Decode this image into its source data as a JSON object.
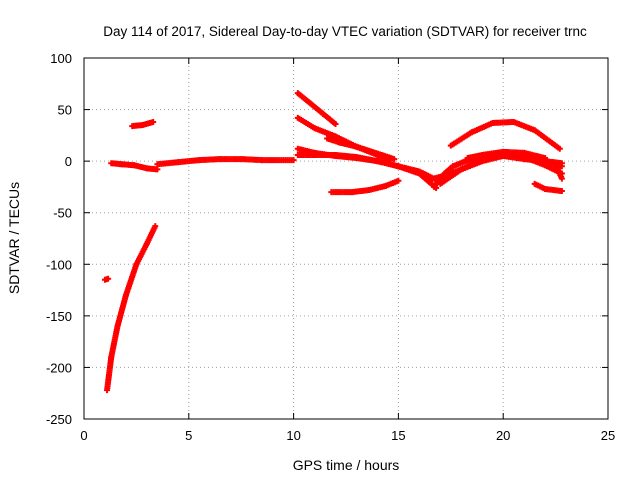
{
  "chart_data": {
    "type": "scatter",
    "title": "Day 114 of 2017, Sidereal Day-to-day VTEC variation (SDTVAR) for receiver trnc",
    "xlabel": "GPS time / hours",
    "ylabel": "SDTVAR / TECUs",
    "xlim": [
      0,
      25
    ],
    "ylim": [
      -250,
      100
    ],
    "xticks": [
      0,
      5,
      10,
      15,
      20,
      25
    ],
    "yticks": [
      -250,
      -200,
      -150,
      -100,
      -50,
      0,
      50,
      100
    ],
    "grid": true,
    "marker": "+",
    "color": "#ff0000",
    "segments": [
      {
        "x": [
          1.0,
          1.15
        ],
        "y": [
          -115,
          -114
        ]
      },
      {
        "x": [
          1.1,
          1.3,
          1.6,
          2.0,
          2.5,
          3.0,
          3.4
        ],
        "y": [
          -222,
          -190,
          -160,
          -130,
          -100,
          -80,
          -63
        ]
      },
      {
        "x": [
          1.3,
          1.8,
          2.4,
          3.0,
          3.5
        ],
        "y": [
          -2,
          -3,
          -4,
          -7,
          -8
        ]
      },
      {
        "x": [
          2.3,
          2.8,
          3.3
        ],
        "y": [
          34,
          35,
          38
        ]
      },
      {
        "x": [
          3.5,
          4.5,
          5.5,
          6.5,
          7.5,
          8.5,
          10.0
        ],
        "y": [
          -3,
          -1,
          1,
          2,
          2,
          1,
          1
        ]
      },
      {
        "x": [
          10.2,
          10.8,
          11.4,
          12.0
        ],
        "y": [
          66,
          56,
          46,
          36
        ]
      },
      {
        "x": [
          10.2,
          11.0,
          12.0,
          13.0,
          14.0,
          14.6
        ],
        "y": [
          42,
          32,
          24,
          14,
          6,
          2
        ]
      },
      {
        "x": [
          10.2,
          11.0,
          12.0,
          13.0,
          14.0,
          15.0,
          16.0,
          17.0
        ],
        "y": [
          12,
          8,
          5,
          3,
          0,
          -5,
          -10,
          -20
        ]
      },
      {
        "x": [
          10.2,
          11.0,
          12.0,
          13.0,
          14.0,
          15.0,
          16.0,
          16.8
        ],
        "y": [
          6,
          6,
          6,
          4,
          0,
          -5,
          -12,
          -26
        ]
      },
      {
        "x": [
          11.6,
          12.2,
          13.0,
          13.6,
          14.2,
          14.8
        ],
        "y": [
          22,
          18,
          14,
          10,
          6,
          2
        ]
      },
      {
        "x": [
          11.8,
          12.8,
          13.6,
          14.4,
          15.0
        ],
        "y": [
          -30,
          -30,
          -28,
          -24,
          -19
        ]
      },
      {
        "x": [
          16.7,
          17.2,
          17.6,
          18.2,
          19.0,
          20.0,
          21.0,
          22.0,
          22.8
        ],
        "y": [
          -25,
          -12,
          -5,
          0,
          3,
          5,
          2,
          0,
          -2
        ]
      },
      {
        "x": [
          16.5,
          17.2,
          18.0,
          19.0,
          20.0,
          21.0,
          22.0,
          22.8
        ],
        "y": [
          -18,
          -14,
          -8,
          0,
          5,
          5,
          0,
          -5
        ]
      },
      {
        "x": [
          17.0,
          18.0,
          19.0,
          20.0,
          21.0,
          22.0,
          22.8
        ],
        "y": [
          -22,
          -8,
          2,
          8,
          4,
          -4,
          -12
        ]
      },
      {
        "x": [
          17.5,
          18.5,
          19.5,
          20.5,
          21.5,
          22.7
        ],
        "y": [
          15,
          28,
          37,
          38,
          30,
          12
        ]
      },
      {
        "x": [
          18.3,
          19.0,
          20.0,
          21.0,
          22.0
        ],
        "y": [
          3,
          6,
          9,
          8,
          3
        ]
      },
      {
        "x": [
          21.5,
          22.0,
          22.8
        ],
        "y": [
          -22,
          -27,
          -29
        ]
      },
      {
        "x": [
          22.5,
          22.8
        ],
        "y": [
          -3,
          -17
        ]
      }
    ]
  }
}
